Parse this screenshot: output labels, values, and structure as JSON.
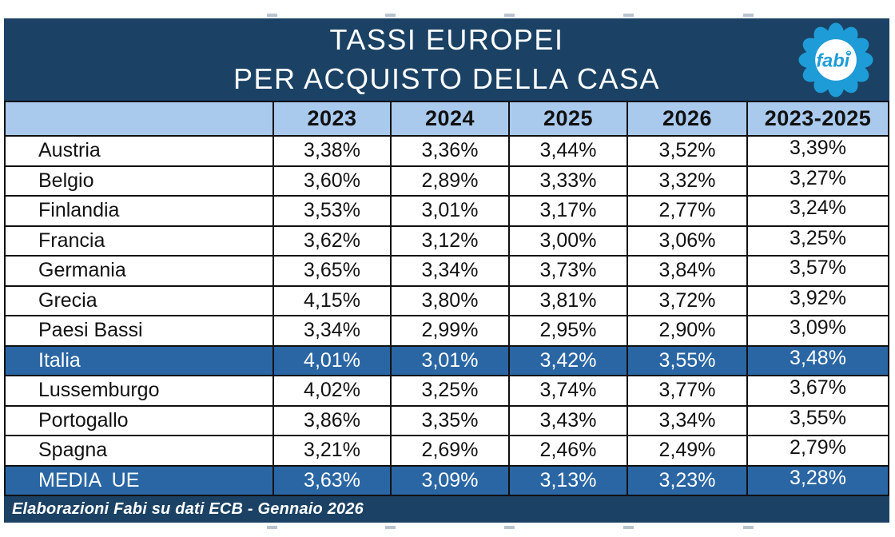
{
  "title": {
    "line1": "TASSI EUROPEI",
    "line2": "PER ACQUISTO DELLA CASA"
  },
  "logo": {
    "text": "fabi"
  },
  "chart_data": {
    "type": "table",
    "title": "TASSI EUROPEI PER ACQUISTO DELLA CASA",
    "unit": "%",
    "value_format": "comma-decimal",
    "columns": [
      "",
      "2023",
      "2024",
      "2025",
      "2026",
      "2023-2025"
    ],
    "rows": [
      {
        "name": "Austria",
        "values": [
          "3,38%",
          "3,36%",
          "3,44%",
          "3,52%",
          "3,39%"
        ],
        "highlight": false
      },
      {
        "name": "Belgio",
        "values": [
          "3,60%",
          "2,89%",
          "3,33%",
          "3,32%",
          "3,27%"
        ],
        "highlight": false
      },
      {
        "name": "Finlandia",
        "values": [
          "3,53%",
          "3,01%",
          "3,17%",
          "2,77%",
          "3,24%"
        ],
        "highlight": false
      },
      {
        "name": "Francia",
        "values": [
          "3,62%",
          "3,12%",
          "3,00%",
          "3,06%",
          "3,25%"
        ],
        "highlight": false
      },
      {
        "name": "Germania",
        "values": [
          "3,65%",
          "3,34%",
          "3,73%",
          "3,84%",
          "3,57%"
        ],
        "highlight": false
      },
      {
        "name": "Grecia",
        "values": [
          "4,15%",
          "3,80%",
          "3,81%",
          "3,72%",
          "3,92%"
        ],
        "highlight": false
      },
      {
        "name": "Paesi Bassi",
        "values": [
          "3,34%",
          "2,99%",
          "2,95%",
          "2,90%",
          "3,09%"
        ],
        "highlight": false
      },
      {
        "name": "Italia",
        "values": [
          "4,01%",
          "3,01%",
          "3,42%",
          "3,55%",
          "3,48%"
        ],
        "highlight": true
      },
      {
        "name": "Lussemburgo",
        "values": [
          "4,02%",
          "3,25%",
          "3,74%",
          "3,77%",
          "3,67%"
        ],
        "highlight": false
      },
      {
        "name": "Portogallo",
        "values": [
          "3,86%",
          "3,35%",
          "3,43%",
          "3,34%",
          "3,55%"
        ],
        "highlight": false
      },
      {
        "name": "Spagna",
        "values": [
          "3,21%",
          "2,69%",
          "2,46%",
          "2,49%",
          "2,79%"
        ],
        "highlight": false
      },
      {
        "name": "MEDIA  UE",
        "values": [
          "3,63%",
          "3,09%",
          "3,13%",
          "3,23%",
          "3,28%"
        ],
        "highlight": true
      }
    ]
  },
  "footer": {
    "text": "Elaborazioni Fabi su dati ECB - Gennaio 2026"
  },
  "colors": {
    "navy": "#1b4264",
    "header_blue": "#a9c9ed",
    "highlight_blue": "#2a66a4",
    "logo_blue": "#1e9cd8",
    "border": "#101010",
    "text_dark": "#121212",
    "text_light": "#ffffff"
  }
}
